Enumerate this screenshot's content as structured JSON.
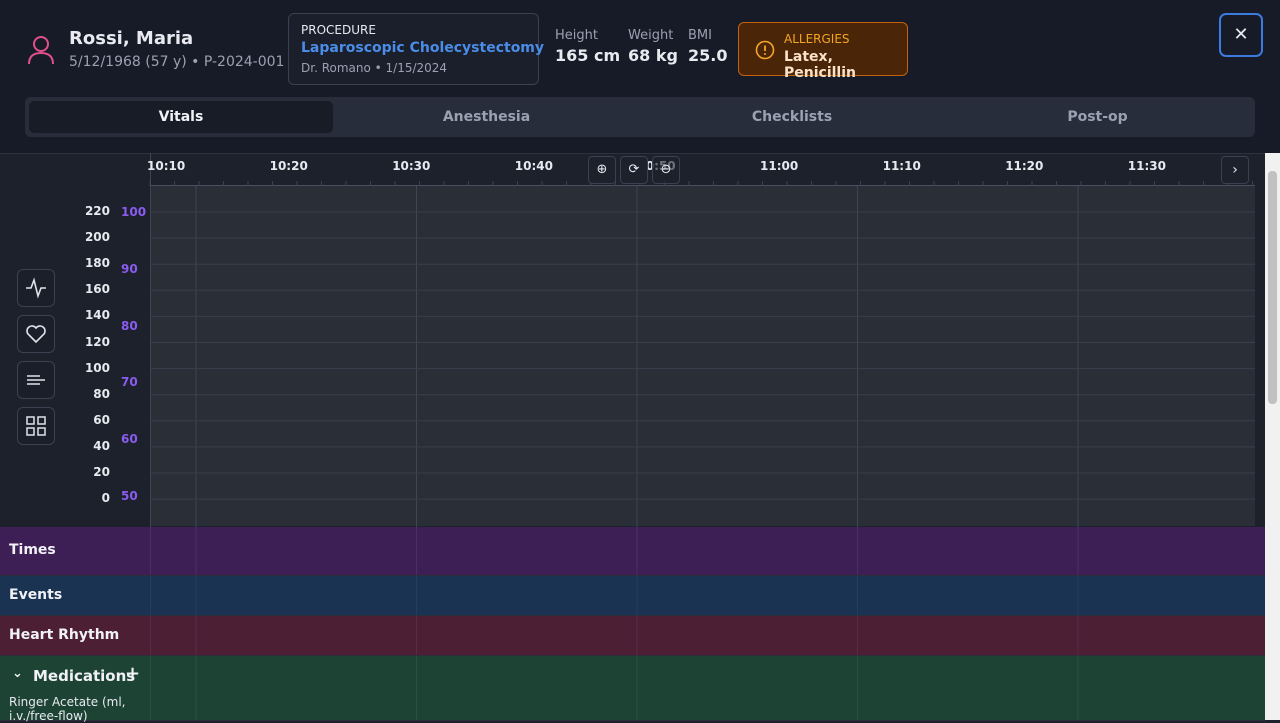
{
  "patient": {
    "name": "Rossi, Maria",
    "details": "5/12/1968 (57 y) • P-2024-001"
  },
  "procedure": {
    "label": "PROCEDURE",
    "name": "Laparoscopic Cholecystectomy",
    "details": "Dr. Romano • 1/15/2024"
  },
  "measurements": [
    {
      "label": "Height",
      "value": "165 cm"
    },
    {
      "label": "Weight",
      "value": "68 kg"
    },
    {
      "label": "BMI",
      "value": "25.0"
    }
  ],
  "allergies": {
    "label": "ALLERGIES",
    "value": "Latex, Penicillin"
  },
  "tabs": [
    "Vitals",
    "Anesthesia",
    "Checklists",
    "Post-op"
  ],
  "timeline": {
    "times": [
      "10:10",
      "10:20",
      "10:30",
      "10:40",
      "10:50",
      "11:00",
      "11:10",
      "11:20",
      "11:30"
    ]
  },
  "left_axis": [
    220,
    200,
    180,
    160,
    140,
    120,
    100,
    80,
    60,
    40,
    20,
    0
  ],
  "right_axis": [
    100,
    90,
    80,
    70,
    60,
    50
  ],
  "rows": [
    "Times",
    "Events",
    "Heart Rhythm",
    "Medications"
  ],
  "medication_items": [
    "Ringer Acetate (ml, i.v./free-flow)"
  ]
}
